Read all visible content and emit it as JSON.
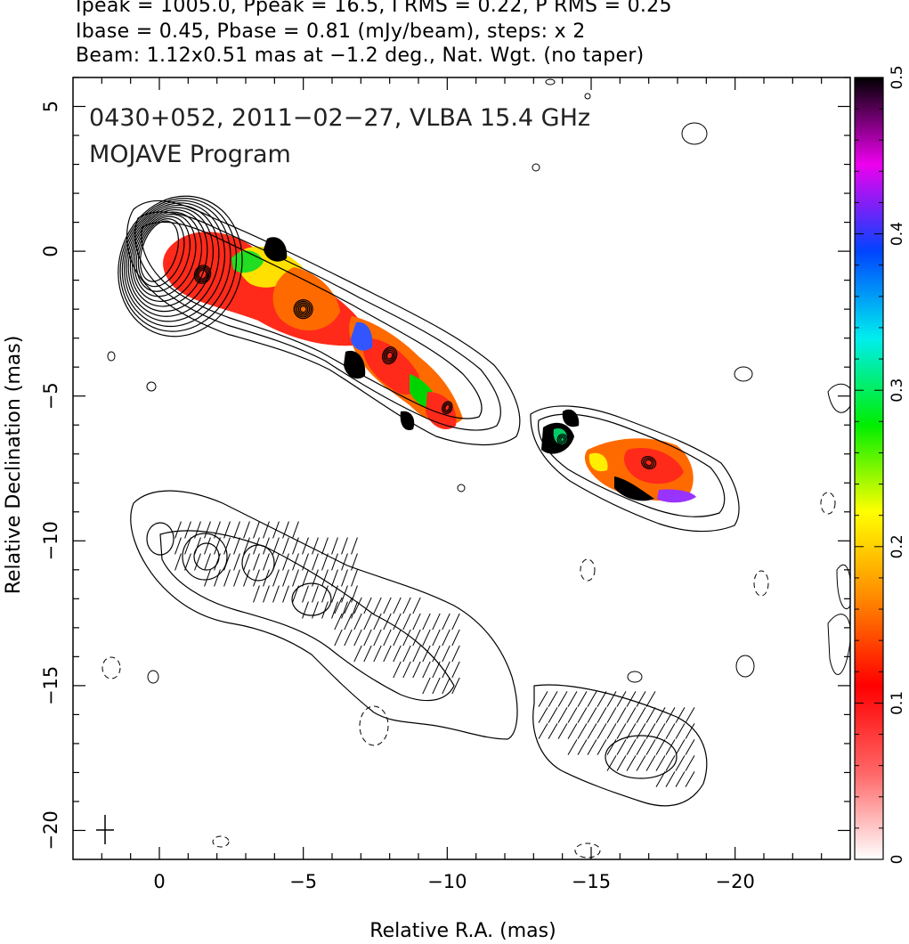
{
  "header": {
    "line1": "Ipeak = 1005.0, Ppeak = 16.5, I RMS = 0.22, P RMS = 0.25",
    "line2": "Ibase = 0.45, Pbase = 0.81 (mJy/beam), steps: x 2",
    "line3": "Beam: 1.12x0.51 mas at −1.2 deg., Nat. Wgt. (no taper)"
  },
  "chart_data": {
    "type": "heatmap",
    "title": "0430+052, 2011−02−27, VLBA 15.4 GHz",
    "subtitle": "MOJAVE Program",
    "xlabel": "Relative R.A. (mas)",
    "ylabel": "Relative Declination (mas)",
    "xlim": [
      3,
      -24
    ],
    "ylim": [
      -21,
      6
    ],
    "xticks": [
      0,
      -5,
      -10,
      -15,
      -20
    ],
    "xtick_labels": [
      "0",
      "−5",
      "−10",
      "−15",
      "−20"
    ],
    "yticks": [
      5,
      0,
      -5,
      -10,
      -15,
      -20
    ],
    "ytick_labels": [
      "5",
      "0",
      "−5",
      "−10",
      "−15",
      "−20"
    ],
    "colorbar": {
      "range": [
        0,
        0.5
      ],
      "ticks": [
        0,
        0.1,
        0.2,
        0.3,
        0.4,
        0.5
      ],
      "tick_labels": [
        "0",
        "0.1",
        "0.2",
        "0.3",
        "0.4",
        "0.5"
      ],
      "colors": [
        "#ffffff",
        "#ff6666",
        "#ff0000",
        "#ff8800",
        "#ffff00",
        "#00ee00",
        "#00eeee",
        "#0044ff",
        "#ee00ee",
        "#000000"
      ]
    },
    "components": [
      {
        "x": 0.0,
        "y": 0.0,
        "peak_mJy": 1005.0
      },
      {
        "x": -1.5,
        "y": -0.8
      },
      {
        "x": -5.0,
        "y": -2.0
      },
      {
        "x": -8.0,
        "y": -3.6
      },
      {
        "x": -10.0,
        "y": -5.4
      },
      {
        "x": -14.0,
        "y": -6.5
      },
      {
        "x": -17.0,
        "y": -7.3
      }
    ]
  }
}
